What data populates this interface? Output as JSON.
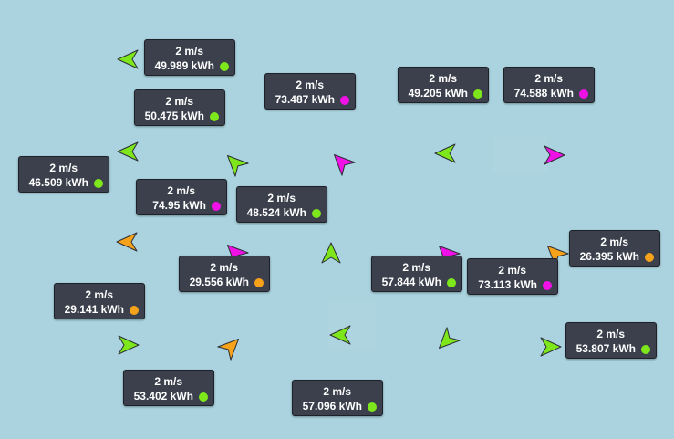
{
  "colors": {
    "background": "#aad3df",
    "label_bg": "#3b404c",
    "green": "#7ee71b",
    "magenta": "#f011e6",
    "orange": "#f7a21b"
  },
  "arrows": [
    {
      "name": "arrow-1",
      "color": "green",
      "direction": "left"
    },
    {
      "name": "arrow-2",
      "color": "green",
      "direction": "left"
    },
    {
      "name": "arrow-3",
      "color": "green",
      "direction": "up-left"
    },
    {
      "name": "arrow-4",
      "color": "magenta",
      "direction": "up-left"
    },
    {
      "name": "arrow-5",
      "color": "green",
      "direction": "left"
    },
    {
      "name": "arrow-6",
      "color": "magenta",
      "direction": "right"
    },
    {
      "name": "arrow-7",
      "color": "orange",
      "direction": "left"
    },
    {
      "name": "arrow-8",
      "color": "magenta",
      "direction": "up-left"
    },
    {
      "name": "arrow-9",
      "color": "green",
      "direction": "up"
    },
    {
      "name": "arrow-10",
      "color": "magenta",
      "direction": "up-left"
    },
    {
      "name": "arrow-11",
      "color": "orange",
      "direction": "up-left"
    },
    {
      "name": "arrow-12",
      "color": "green",
      "direction": "right"
    },
    {
      "name": "arrow-13",
      "color": "orange",
      "direction": "up-right"
    },
    {
      "name": "arrow-14",
      "color": "green",
      "direction": "left"
    },
    {
      "name": "arrow-15",
      "color": "green",
      "direction": "down-left"
    },
    {
      "name": "arrow-16",
      "color": "green",
      "direction": "right"
    }
  ],
  "labels": [
    {
      "speed": "2 m/s",
      "energy": "49.989 kWh",
      "status": "green"
    },
    {
      "speed": "2 m/s",
      "energy": "50.475 kWh",
      "status": "green"
    },
    {
      "speed": "2 m/s",
      "energy": "73.487 kWh",
      "status": "magenta"
    },
    {
      "speed": "2 m/s",
      "energy": "49.205 kWh",
      "status": "green"
    },
    {
      "speed": "2 m/s",
      "energy": "74.588 kWh",
      "status": "magenta"
    },
    {
      "speed": "2 m/s",
      "energy": "46.509 kWh",
      "status": "green"
    },
    {
      "speed": "2 m/s",
      "energy": "74.95 kWh",
      "status": "magenta"
    },
    {
      "speed": "2 m/s",
      "energy": "48.524 kWh",
      "status": "green"
    },
    {
      "speed": "2 m/s",
      "energy": "26.395 kWh",
      "status": "orange"
    },
    {
      "speed": "2 m/s",
      "energy": "29.556 kWh",
      "status": "orange"
    },
    {
      "speed": "2 m/s",
      "energy": "57.844 kWh",
      "status": "green"
    },
    {
      "speed": "2 m/s",
      "energy": "73.113 kWh",
      "status": "magenta"
    },
    {
      "speed": "2 m/s",
      "energy": "29.141 kWh",
      "status": "orange"
    },
    {
      "speed": "2 m/s",
      "energy": "53.807 kWh",
      "status": "green"
    },
    {
      "speed": "2 m/s",
      "energy": "53.402 kWh",
      "status": "green"
    },
    {
      "speed": "2 m/s",
      "energy": "57.096 kWh",
      "status": "green"
    }
  ]
}
